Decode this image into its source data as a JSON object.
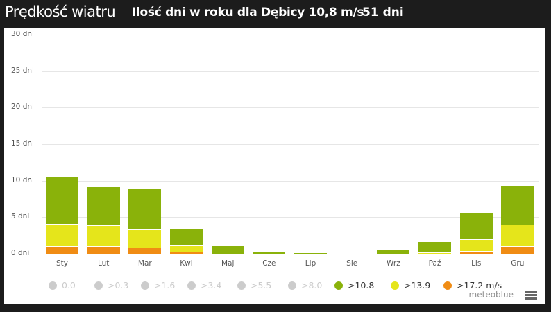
{
  "header": {
    "title": "Prędkość wiatru",
    "subtitle": "Ilość dni w roku dla Dębicy 10,8 m/s",
    "count": "51 dni"
  },
  "credit": "meteoblue",
  "colors": {
    "green": "#8ab20a",
    "yellow": "#e5e51b",
    "orange": "#f08c14",
    "disabled": "#cccccc"
  },
  "chart_data": {
    "type": "bar",
    "stacked": true,
    "title": "Prędkość wiatru — Ilość dni w roku dla Dębicy 10,8 m/s",
    "xlabel": "",
    "ylabel": "dni",
    "ylim": [
      0,
      30
    ],
    "yticks": [
      "0 dni",
      "5 dni",
      "10 dni",
      "15 dni",
      "20 dni",
      "25 dni",
      "30 dni"
    ],
    "grid": true,
    "legend_position": "bottom",
    "categories": [
      "Sty",
      "Lut",
      "Mar",
      "Kwi",
      "Maj",
      "Cze",
      "Lip",
      "Sie",
      "Wrz",
      "Paź",
      "Lis",
      "Gru"
    ],
    "series": [
      {
        "name": ">17.2 m/s",
        "color": "#f08c14",
        "values": [
          1.05,
          1.05,
          0.85,
          0.3,
          0,
          0,
          0,
          0,
          0,
          0,
          0.4,
          1.05
        ]
      },
      {
        "name": ">13.9",
        "color": "#e5e51b",
        "values": [
          3.05,
          2.85,
          2.45,
          0.85,
          0,
          0,
          0,
          0,
          0,
          0.2,
          1.6,
          2.95
        ]
      },
      {
        "name": ">10.8",
        "color": "#8ab20a",
        "values": [
          6.4,
          5.4,
          5.6,
          2.25,
          1.15,
          0.3,
          0.15,
          0,
          0.55,
          1.5,
          3.7,
          5.4
        ]
      }
    ],
    "totals": [
      10.5,
      9.3,
      8.9,
      3.4,
      1.15,
      0.3,
      0.15,
      0,
      0.55,
      1.7,
      5.7,
      9.4
    ],
    "legend": [
      {
        "label": "0.0",
        "active": false
      },
      {
        "label": ">0.3",
        "active": false
      },
      {
        "label": ">1.6",
        "active": false
      },
      {
        "label": ">3.4",
        "active": false
      },
      {
        "label": ">5.5",
        "active": false
      },
      {
        "label": ">8.0",
        "active": false
      },
      {
        "label": ">10.8",
        "active": true,
        "color": "#8ab20a"
      },
      {
        "label": ">13.9",
        "active": true,
        "color": "#e5e51b"
      },
      {
        "label": ">17.2 m/s",
        "active": true,
        "color": "#f08c14"
      }
    ]
  }
}
